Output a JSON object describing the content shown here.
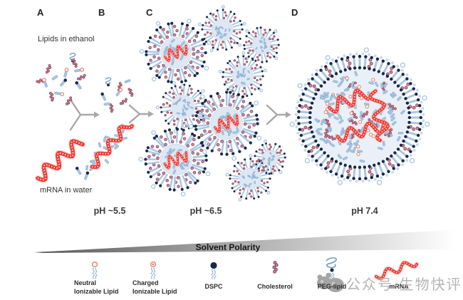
{
  "figure": {
    "panel_labels": [
      "A",
      "B",
      "C",
      "D"
    ],
    "captions": {
      "lipids": "Lipids in ethanol",
      "mrna": "mRNA in water"
    },
    "ph_labels": [
      "pH ~5.5",
      "pH ~6.5",
      "pH 7.4"
    ],
    "gradient_label": "Solvent Polarity"
  },
  "legend": {
    "items": [
      {
        "name": "neutral-ionizable-lipid",
        "lines": [
          "Neutral",
          "Ionizable Lipid"
        ]
      },
      {
        "name": "charged-ionizable-lipid",
        "lines": [
          "Charged",
          "Ionizable Lipid"
        ]
      },
      {
        "name": "dspc",
        "lines": [
          "DSPC"
        ]
      },
      {
        "name": "cholesterol",
        "lines": [
          "Cholesterol"
        ]
      },
      {
        "name": "peg-lipid",
        "lines": [
          "PEG-lipid"
        ]
      },
      {
        "name": "mrna",
        "lines": [
          "mRNA"
        ]
      }
    ]
  },
  "watermark": {
    "text": "公众号·生物快评"
  },
  "colors": {
    "tail_blue": "#a9c6e2",
    "tail_dark": "#7fa6cc",
    "head_navy": "#18294b",
    "cholesterol": "#8f4458",
    "cholesterol_fill": "#c98ba0",
    "salmon": "#ef8470",
    "mrna_red": "#ee3b33",
    "mrna_light": "#f8b7b2",
    "micelle_core": "#dde8f3",
    "lnp_core": "#eaf0f7",
    "arrow_gray": "#a8a8a8",
    "wedge_dark": "#585858",
    "wedge_light": "#ffffff",
    "watermark_gray": "#9c9c9c"
  }
}
